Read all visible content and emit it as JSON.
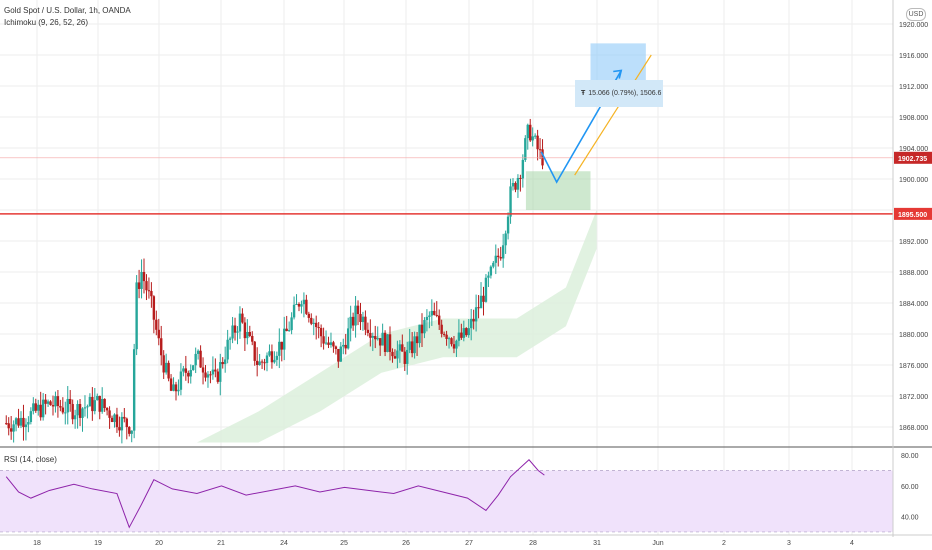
{
  "header": {
    "symbol": "Gold Spot / U.S. Dollar, 1h, OANDA",
    "indicator": "Ichimoku (9, 26, 52, 26)",
    "currency_button": "USD"
  },
  "rsi": {
    "label": "RSI (14, close)"
  },
  "measure": {
    "text": "15.066 (0.79%), 1506.6"
  },
  "colors": {
    "up": "#26a69a",
    "down": "#b71c1c",
    "grid": "#eeeeee",
    "support": "#e53935",
    "arrow_blue": "#2196f3",
    "arrow_gold": "#f5b324",
    "cloud": "#d9efd9",
    "rsi_line": "#8e24aa",
    "rsi_band": "#f0e2fb"
  },
  "chart_data": [
    {
      "type": "candlestick",
      "title": "Gold Spot / U.S. Dollar, 1h, OANDA",
      "xlabel": "",
      "ylabel": "",
      "x_ticks": [
        "18",
        "19",
        "20",
        "21",
        "24",
        "25",
        "26",
        "27",
        "28",
        "31",
        "Jun",
        "2",
        "3",
        "4"
      ],
      "y_ticks": [
        "1868.000",
        "1872.000",
        "1876.000",
        "1880.000",
        "1884.000",
        "1888.000",
        "1892.000",
        "1896.000",
        "1900.000",
        "1904.000",
        "1908.000",
        "1912.000",
        "1916.000",
        "1920.000"
      ],
      "ylim": [
        1866,
        1924
      ],
      "current_price": "1902.735",
      "horizontal_line": {
        "price": 1895.5,
        "label": "1895.500"
      },
      "series": [
        {
          "name": "OHLC",
          "path": [
            [
              17.6,
              1868.5
            ],
            [
              17.9,
              1869.6
            ],
            [
              18.2,
              1871.0
            ],
            [
              18.6,
              1870.2
            ],
            [
              19.0,
              1871.2
            ],
            [
              19.3,
              1869.0
            ],
            [
              19.55,
              1868.0
            ],
            [
              19.6,
              1885.0
            ],
            [
              19.7,
              1888.0
            ],
            [
              19.85,
              1884.0
            ],
            [
              20.0,
              1878.0
            ],
            [
              20.2,
              1872.0
            ],
            [
              20.4,
              1875.0
            ],
            [
              20.6,
              1877.0
            ],
            [
              20.9,
              1874.0
            ],
            [
              21.1,
              1878.5
            ],
            [
              21.3,
              1882.0
            ],
            [
              21.6,
              1876.0
            ],
            [
              22.0,
              1879.0
            ],
            [
              22.3,
              1885.0
            ],
            [
              22.6,
              1880.0
            ],
            [
              22.9,
              1877.0
            ],
            [
              23.2,
              1883.0
            ],
            [
              23.5,
              1880.0
            ],
            [
              23.8,
              1878.0
            ],
            [
              24.0,
              1877.0
            ],
            [
              24.4,
              1882.5
            ],
            [
              24.8,
              1879.0
            ],
            [
              25.0,
              1880.0
            ],
            [
              25.2,
              1884.0
            ],
            [
              25.4,
              1888.0
            ],
            [
              25.55,
              1891.0
            ],
            [
              25.7,
              1898.0
            ],
            [
              25.85,
              1901.0
            ],
            [
              26.0,
              1906.5
            ],
            [
              26.1,
              1904.5
            ],
            [
              26.2,
              1902.8
            ]
          ]
        },
        {
          "name": "Projection",
          "points": [
            [
              26.2,
              1903.5
            ],
            [
              26.45,
              1899.6
            ],
            [
              27.5,
              1914.0
            ]
          ]
        }
      ]
    },
    {
      "type": "line",
      "title": "RSI (14, close)",
      "y_ticks": [
        "40.00",
        "60.00",
        "80.00"
      ],
      "ylim": [
        28,
        84
      ],
      "bands": [
        30,
        70
      ],
      "series": [
        {
          "name": "RSI",
          "points": [
            [
              17.5,
              66
            ],
            [
              17.7,
              56
            ],
            [
              17.9,
              52
            ],
            [
              18.2,
              57
            ],
            [
              18.6,
              61
            ],
            [
              18.9,
              58
            ],
            [
              19.3,
              55
            ],
            [
              19.5,
              33
            ],
            [
              19.7,
              48
            ],
            [
              19.9,
              64
            ],
            [
              20.2,
              58
            ],
            [
              20.6,
              55
            ],
            [
              21.0,
              60
            ],
            [
              21.4,
              54
            ],
            [
              21.8,
              57
            ],
            [
              22.2,
              60
            ],
            [
              22.6,
              56
            ],
            [
              23.0,
              59
            ],
            [
              23.4,
              57
            ],
            [
              23.8,
              55
            ],
            [
              24.2,
              60
            ],
            [
              24.6,
              56
            ],
            [
              25.0,
              52
            ],
            [
              25.3,
              44
            ],
            [
              25.5,
              54
            ],
            [
              25.7,
              66
            ],
            [
              26.0,
              77
            ],
            [
              26.15,
              70
            ],
            [
              26.25,
              67
            ]
          ]
        }
      ]
    }
  ]
}
